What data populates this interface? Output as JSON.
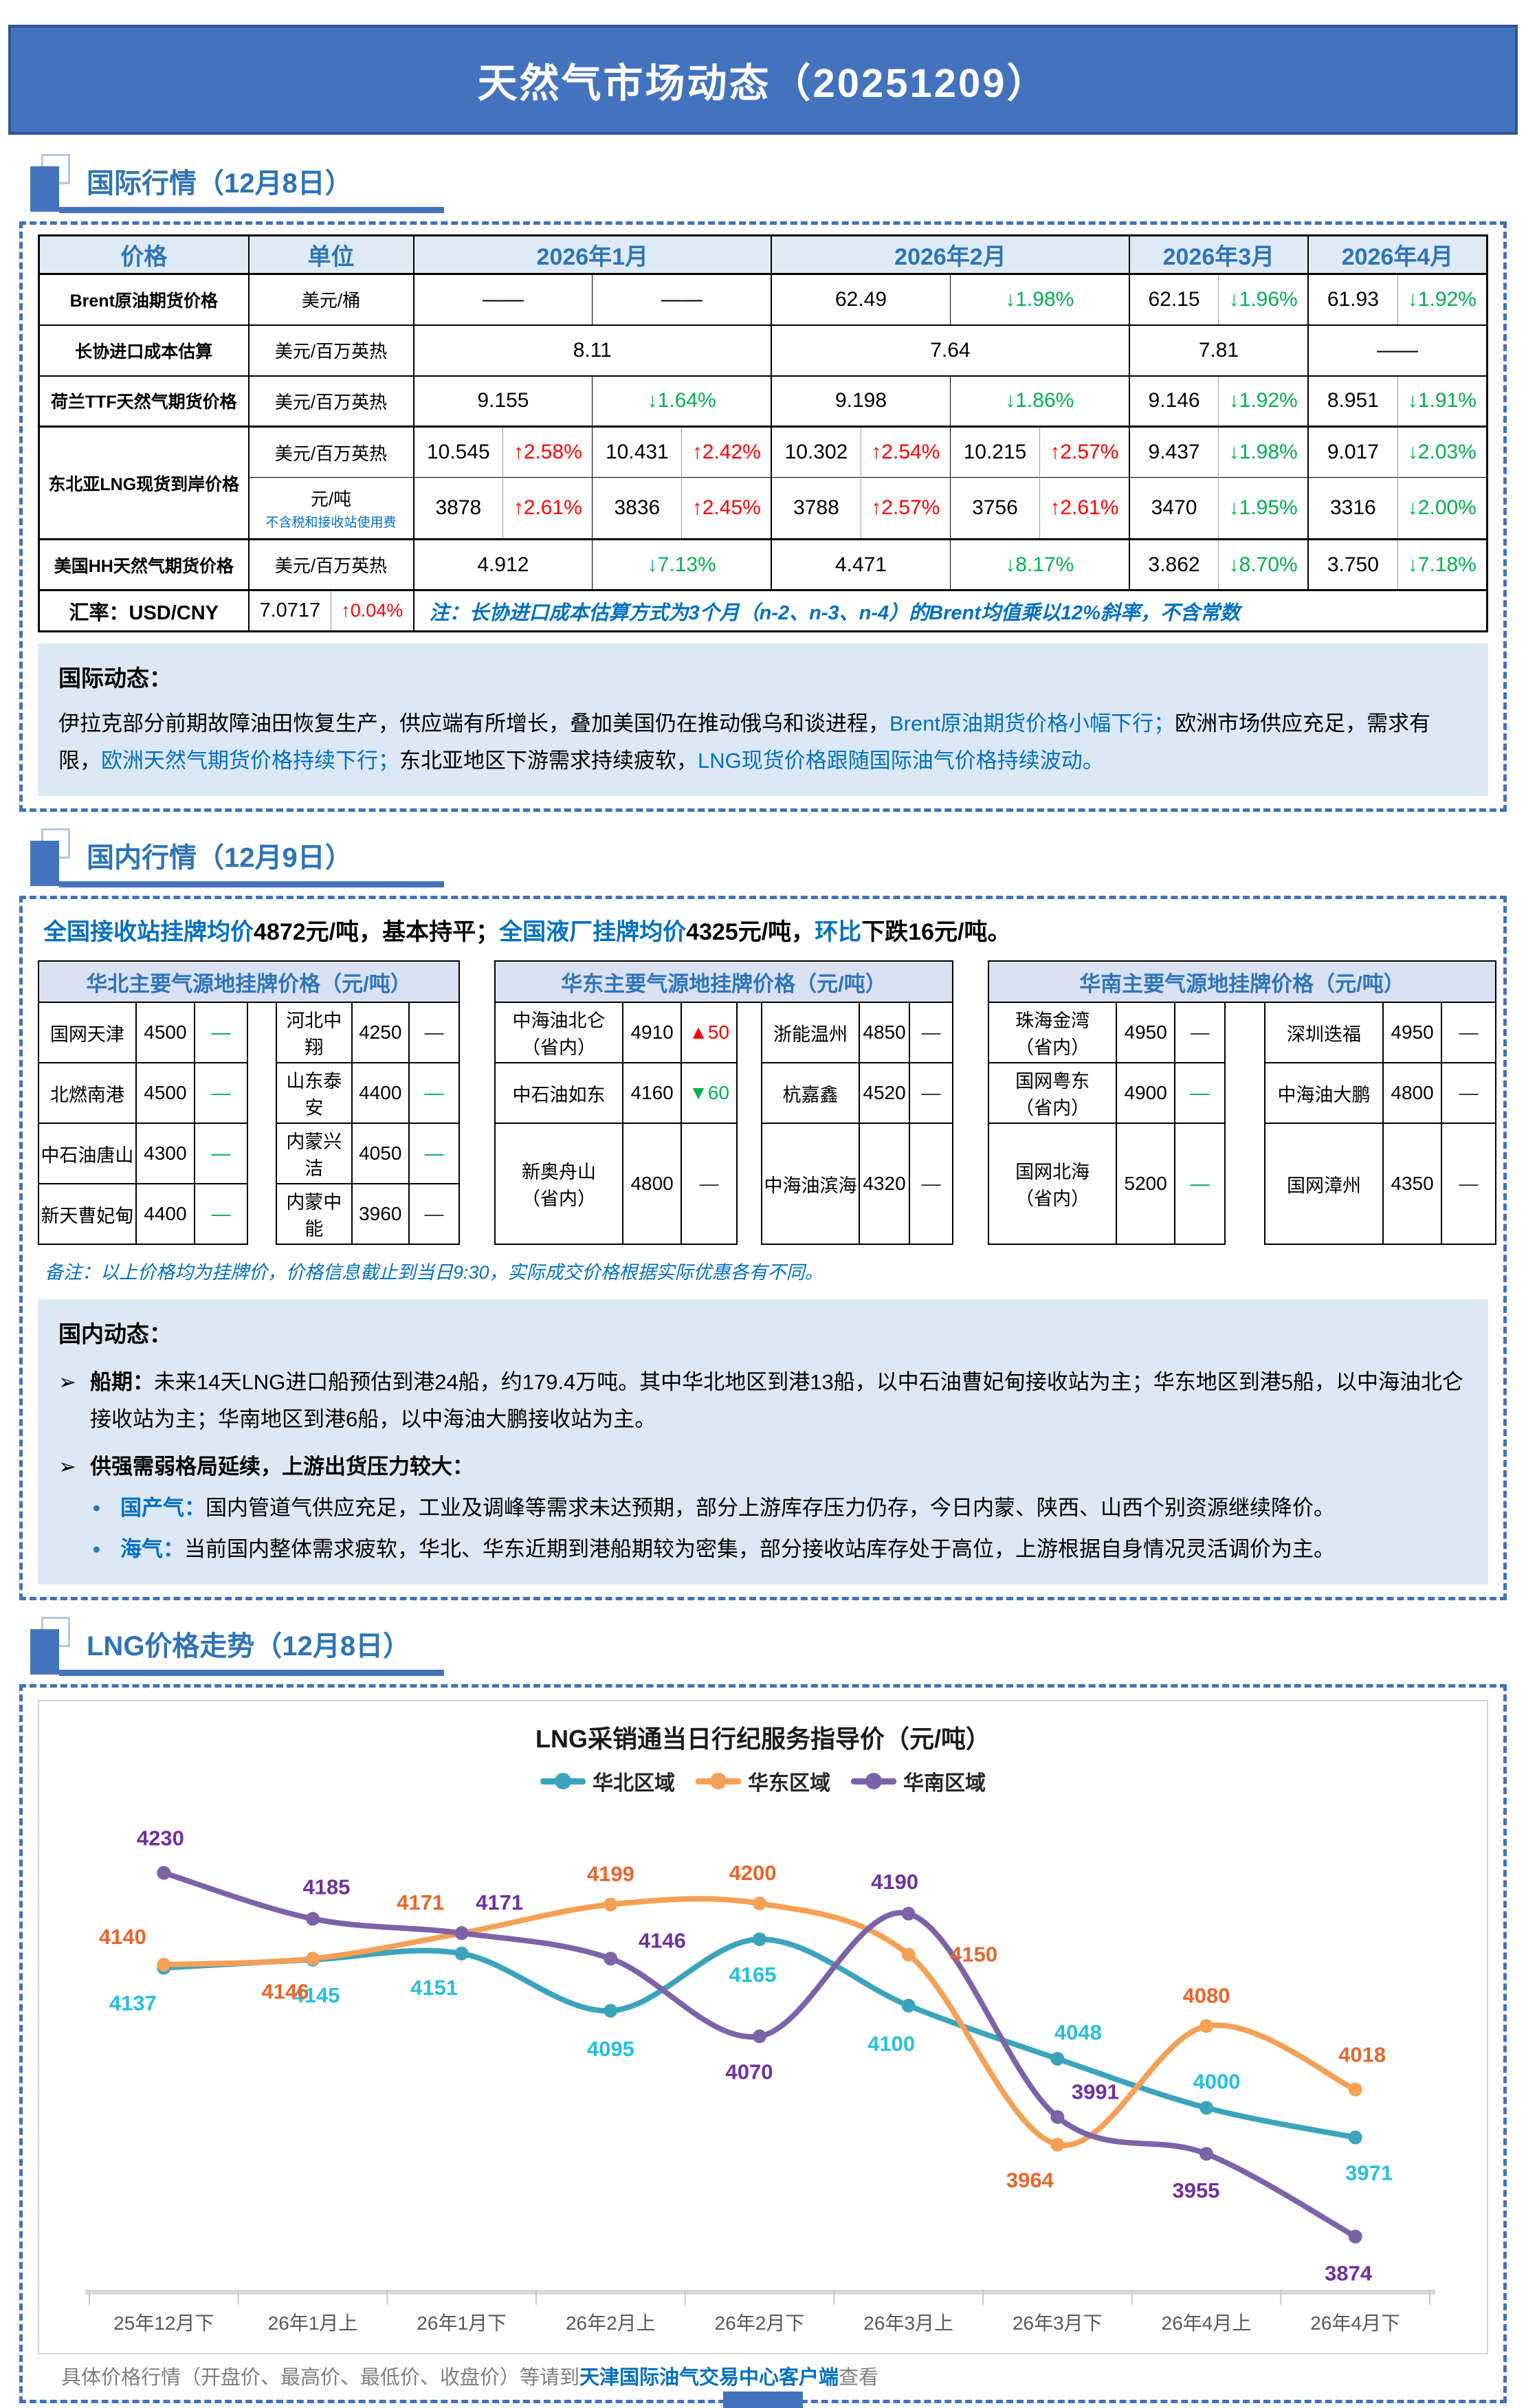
{
  "page": {
    "title": "天然气市场动态（20251209）",
    "footer": {
      "prefix": "具体价格行情（开盘价、最高价、最低价、收盘价）等请到",
      "link": "天津国际油气交易中心客户端",
      "suffix": "查看"
    },
    "colors": {
      "accent": "#2E74B5",
      "banner_bg": "#4473BE",
      "highlight": "#0070C0",
      "up": "#FF0000",
      "down": "#00B050"
    }
  },
  "sections": [
    {
      "id": "intl",
      "title": "国际行情（12月8日）"
    },
    {
      "id": "domestic",
      "title": "国内行情（12月9日）"
    },
    {
      "id": "trend",
      "title": "LNG价格走势（12月8日）"
    }
  ],
  "intl_table": {
    "col_headers": [
      "价格",
      "单位",
      "2026年1月",
      "2026年2月",
      "2026年3月",
      "2026年4月"
    ],
    "rows": [
      {
        "label": "Brent原油期货价格",
        "unit": "美元/桶",
        "sep": "",
        "cells": [
          {
            "t": "——",
            "cs": 2
          },
          {
            "t": "——",
            "cs": 2
          },
          {
            "t": "62.49",
            "cs": 2
          },
          {
            "t": "↓1.98%",
            "cs": 2,
            "dir": "down"
          },
          {
            "t": "62.15"
          },
          {
            "t": "↓1.96%",
            "dir": "down"
          },
          {
            "t": "61.93"
          },
          {
            "t": "↓1.92%",
            "dir": "down"
          }
        ]
      },
      {
        "label": "长协进口成本估算",
        "unit": "美元/百万英热",
        "sep": "",
        "cells": [
          {
            "t": "8.11",
            "cs": 4
          },
          {
            "t": "7.64",
            "cs": 4
          },
          {
            "t": "7.81",
            "cs": 2
          },
          {
            "t": "——",
            "cs": 2
          }
        ]
      },
      {
        "label": "荷兰TTF天然气期货价格",
        "unit": "美元/百万英热",
        "sep": "",
        "cells": [
          {
            "t": "9.155",
            "cs": 2
          },
          {
            "t": "↓1.64%",
            "cs": 2,
            "dir": "down"
          },
          {
            "t": "9.198",
            "cs": 2
          },
          {
            "t": "↓1.86%",
            "cs": 2,
            "dir": "down"
          },
          {
            "t": "9.146"
          },
          {
            "t": "↓1.92%",
            "dir": "down"
          },
          {
            "t": "8.951"
          },
          {
            "t": "↓1.91%",
            "dir": "down"
          }
        ]
      },
      {
        "label": "东北亚LNG现货到岸价格",
        "label_rowspan": 2,
        "unit": "美元/百万英热",
        "sep": "sep3",
        "cells": [
          {
            "t": "10.545"
          },
          {
            "t": "↑2.58%",
            "dir": "up"
          },
          {
            "t": "10.431"
          },
          {
            "t": "↑2.42%",
            "dir": "up"
          },
          {
            "t": "10.302"
          },
          {
            "t": "↑2.54%",
            "dir": "up"
          },
          {
            "t": "10.215"
          },
          {
            "t": "↑2.57%",
            "dir": "up"
          },
          {
            "t": "9.437"
          },
          {
            "t": "↓1.98%",
            "dir": "down"
          },
          {
            "t": "9.017"
          },
          {
            "t": "↓2.03%",
            "dir": "down"
          }
        ]
      },
      {
        "unit": "元/吨",
        "unit_sub": "不含税和接收站使用费",
        "sep": "sep1",
        "cells": [
          {
            "t": "3878"
          },
          {
            "t": "↑2.61%",
            "dir": "up"
          },
          {
            "t": "3836"
          },
          {
            "t": "↑2.45%",
            "dir": "up"
          },
          {
            "t": "3788"
          },
          {
            "t": "↑2.57%",
            "dir": "up"
          },
          {
            "t": "3756"
          },
          {
            "t": "↑2.61%",
            "dir": "up"
          },
          {
            "t": "3470"
          },
          {
            "t": "↓1.95%",
            "dir": "down"
          },
          {
            "t": "3316"
          },
          {
            "t": "↓2.00%",
            "dir": "down"
          }
        ]
      },
      {
        "label": "美国HH天然气期货价格",
        "unit": "美元/百万英热",
        "sep": "sep3",
        "cells": [
          {
            "t": "4.912",
            "cs": 2
          },
          {
            "t": "↓7.13%",
            "cs": 2,
            "dir": "down"
          },
          {
            "t": "4.471",
            "cs": 2
          },
          {
            "t": "↓8.17%",
            "cs": 2,
            "dir": "down"
          },
          {
            "t": "3.862"
          },
          {
            "t": "↓8.70%",
            "dir": "down"
          },
          {
            "t": "3.750"
          },
          {
            "t": "↓7.18%",
            "dir": "down"
          }
        ]
      }
    ],
    "fx_row": {
      "label": "汇率：USD/CNY",
      "value": "7.0717",
      "change": "↑0.04%",
      "note": "注：长协进口成本估算方式为3个月（n-2、n-3、n-4）的Brent均值乘以12%斜率，不含常数"
    }
  },
  "intl_news": {
    "title": "国际动态：",
    "segments": [
      {
        "t": "伊拉克部分前期故障油田恢复生产，供应端有所增长，叠加美国仍在推动俄乌和谈进程，"
      },
      {
        "t": "Brent原油期货价格小幅下行；",
        "cls": "hl"
      },
      {
        "t": "欧洲市场供应充足，需求有限，"
      },
      {
        "t": "欧洲天然气期货价格持续下行；",
        "cls": "hl"
      },
      {
        "t": "东北亚地区下游需求持续疲软，"
      },
      {
        "t": "LNG现货价格跟随国际油气价格持续波动。",
        "cls": "hl"
      }
    ]
  },
  "domestic": {
    "summary_segments": [
      {
        "t": "全国接收站挂牌均价",
        "cls": "hl"
      },
      {
        "t": "4872元/吨，基本持平；"
      },
      {
        "t": "全国液厂挂牌均价",
        "cls": "hl"
      },
      {
        "t": "4325元/吨，"
      },
      {
        "t": "环比",
        "cls": "hl"
      },
      {
        "t": "下跌16元/吨。"
      }
    ],
    "tables": [
      {
        "title": "华北主要气源地挂牌价格（元/吨）",
        "gap": 40,
        "left": {
          "cols": [
            140,
            84,
            76
          ],
          "rows": [
            {
              "name": "国网天津",
              "price": "4500",
              "chg": "—",
              "tone": "g"
            },
            {
              "name": "北燃南港",
              "price": "4500",
              "chg": "—",
              "tone": "g"
            },
            {
              "name": "中石油唐山",
              "price": "4300",
              "chg": "—",
              "tone": "g"
            },
            {
              "name": "新天曹妃甸",
              "price": "4400",
              "chg": "—",
              "tone": "g"
            }
          ]
        },
        "right": {
          "cols": [
            108,
            82,
            72
          ],
          "rows": [
            {
              "name": "河北中翔",
              "price": "4250",
              "chg": "—",
              "tone": "k"
            },
            {
              "name": "山东泰安",
              "price": "4400",
              "chg": "—",
              "tone": "g"
            },
            {
              "name": "内蒙兴洁",
              "price": "4050",
              "chg": "—",
              "tone": "g"
            },
            {
              "name": "内蒙中能",
              "price": "3960",
              "chg": "—",
              "tone": "k"
            }
          ]
        }
      },
      {
        "title": "华东主要气源地挂牌价格（元/吨）",
        "gap": 34,
        "left": {
          "cols": [
            184,
            84,
            80
          ],
          "rows": [
            {
              "name": "中海油北仑",
              "sub": "（省内）",
              "price": "4910",
              "chg": "▲50",
              "tone": "r"
            },
            {
              "name": "中石油如东",
              "price": "4160",
              "chg": "▼60",
              "tone": "g"
            },
            {
              "name": "新奥舟山",
              "sub": "（省内）",
              "price": "4800",
              "chg": "—",
              "tone": "k",
              "tall": true
            }
          ]
        },
        "right": {
          "cols": [
            140,
            72,
            62
          ],
          "rows": [
            {
              "name": "浙能温州",
              "price": "4850",
              "chg": "—",
              "tone": "k"
            },
            {
              "name": "杭嘉鑫",
              "price": "4520",
              "chg": "—",
              "tone": "k"
            },
            {
              "name": "中海油滨海",
              "price": "4320",
              "chg": "—",
              "tone": "k",
              "tall": true
            }
          ]
        }
      },
      {
        "title": "华南主要气源地挂牌价格（元/吨）",
        "gap": 56,
        "left": {
          "cols": [
            184,
            84,
            72
          ],
          "rows": [
            {
              "name": "珠海金湾",
              "sub": "（省内）",
              "price": "4950",
              "chg": "—",
              "tone": "k"
            },
            {
              "name": "国网粤东",
              "sub": "（省内）",
              "price": "4900",
              "chg": "—",
              "tone": "g"
            },
            {
              "name": "国网北海",
              "sub": "（省内）",
              "price": "5200",
              "chg": "—",
              "tone": "g",
              "tall": true
            }
          ]
        },
        "right": {
          "cols": [
            170,
            84,
            78
          ],
          "rows": [
            {
              "name": "深圳迭福",
              "price": "4950",
              "chg": "—",
              "tone": "k"
            },
            {
              "name": "中海油大鹏",
              "price": "4800",
              "chg": "—",
              "tone": "k"
            },
            {
              "name": "国网漳州",
              "price": "4350",
              "chg": "—",
              "tone": "k",
              "tall": true
            }
          ]
        }
      }
    ],
    "remark": "备注：以上价格均为挂牌价，价格信息截止到当日9:30，实际成交价格根据实际优惠各有不同。"
  },
  "domestic_news": {
    "title": "国内动态：",
    "bullets": [
      {
        "marker": "➢",
        "segments": [
          {
            "t": "船期：",
            "cls": "b"
          },
          {
            "t": "未来14天LNG进口船预估到港24船，约179.4万吨。其中华北地区到港13船，以中石油曹妃甸接收站为主；华东地区到港5船，以中海油北仑接收站为主；华南地区到港6船，以中海油大鹏接收站为主。"
          }
        ]
      },
      {
        "marker": "➢",
        "segments": [
          {
            "t": "供强需弱格局延续，上游出货压力较大：",
            "cls": "b"
          }
        ],
        "subs": [
          {
            "marker": "•",
            "segments": [
              {
                "t": "国产气：",
                "cls": "hlb"
              },
              {
                "t": "国内管道气供应充足，工业及调峰等需求未达预期，部分上游库存压力仍存，今日内蒙、陕西、山西个别资源继续降价。"
              }
            ]
          },
          {
            "marker": "•",
            "segments": [
              {
                "t": "海气：",
                "cls": "hlb"
              },
              {
                "t": "当前国内整体需求疲软，华北、华东近期到港船期较为密集，部分接收站库存处于高位，上游根据自身情况灵活调价为主。"
              }
            ]
          }
        ]
      }
    ]
  },
  "chart_data": {
    "type": "line",
    "title": "LNG采销通当日行纪服务指导价（元/吨）",
    "xlabel": "",
    "ylabel": "",
    "ylim": [
      3830,
      4270
    ],
    "grid": false,
    "legend_position": "top",
    "categories": [
      "25年12月下",
      "26年1月上",
      "26年1月下",
      "26年2月上",
      "26年2月下",
      "26年3月上",
      "26年3月下",
      "26年4月上",
      "26年4月下"
    ],
    "series": [
      {
        "name": "华北区域",
        "line_color": "#3BA4BC",
        "label_color": "#27BFDE",
        "values": [
          4137,
          4145,
          4151,
          4095,
          4165,
          4100,
          4048,
          4000,
          3971
        ],
        "label_offsets": [
          [
            -45,
            62
          ],
          [
            5,
            62
          ],
          [
            -40,
            60
          ],
          [
            0,
            66
          ],
          [
            -10,
            62
          ],
          [
            -25,
            66
          ],
          [
            30,
            -28
          ],
          [
            15,
            -28
          ],
          [
            20,
            62
          ]
        ]
      },
      {
        "name": "华东区域",
        "line_color": "#F5A054",
        "label_color": "#E8662A",
        "values": [
          4140,
          4146,
          4171,
          4199,
          4200,
          4150,
          3964,
          4080,
          4018
        ],
        "label_offsets": [
          [
            -60,
            -30
          ],
          [
            -40,
            58
          ],
          [
            -60,
            -34
          ],
          [
            0,
            -34
          ],
          [
            -10,
            -34
          ],
          [
            95,
            10
          ],
          [
            -40,
            62
          ],
          [
            0,
            -34
          ],
          [
            10,
            -40
          ]
        ]
      },
      {
        "name": "华南区域",
        "line_color": "#7E62A8",
        "label_color": "#7030A0",
        "values": [
          4230,
          4185,
          4171,
          4146,
          4070,
          4190,
          3991,
          3955,
          3874
        ],
        "label_offsets": [
          [
            -5,
            -40
          ],
          [
            20,
            -36
          ],
          [
            55,
            -34
          ],
          [
            75,
            -16
          ],
          [
            -15,
            62
          ],
          [
            -20,
            -36
          ],
          [
            55,
            -26
          ],
          [
            -15,
            64
          ],
          [
            -10,
            64
          ]
        ]
      }
    ]
  }
}
